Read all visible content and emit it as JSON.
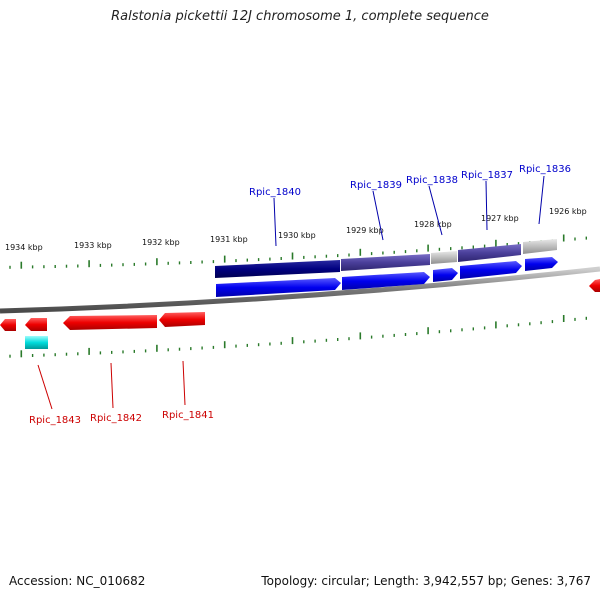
{
  "title": "Ralstonia pickettii 12J chromosome 1, complete sequence",
  "footer": {
    "accession": "Accession: NC_010682",
    "summary": "Topology: circular; Length: 3,942,557 bp; Genes: 3,767"
  },
  "scale": {
    "kbp_labels": [
      "1934 kbp",
      "1933 kbp",
      "1932 kbp",
      "1931 kbp",
      "1930 kbp",
      "1929 kbp",
      "1928 kbp",
      "1927 kbp",
      "1926 kbp"
    ]
  },
  "genes_forward": [
    {
      "name": "Rpic_1840",
      "color": "#0000cc"
    },
    {
      "name": "Rpic_1839",
      "color": "#0000cc"
    },
    {
      "name": "Rpic_1838",
      "color": "#0000cc"
    },
    {
      "name": "Rpic_1837",
      "color": "#0000cc"
    },
    {
      "name": "Rpic_1836",
      "color": "#0000cc"
    }
  ],
  "genes_reverse": [
    {
      "name": "Rpic_1843",
      "color": "#cc0000"
    },
    {
      "name": "Rpic_1842",
      "color": "#cc0000"
    },
    {
      "name": "Rpic_1841",
      "color": "#cc0000"
    }
  ],
  "colors": {
    "forward_gene": "#0000ee",
    "reverse_gene": "#ee0000",
    "feature_dark": "#000080",
    "feature_purple": "#4a3f9a",
    "feature_gray": "#bdbdbd",
    "rna": "#00dddd",
    "backbone": "#777777",
    "ticks": "#2a7a2a"
  }
}
